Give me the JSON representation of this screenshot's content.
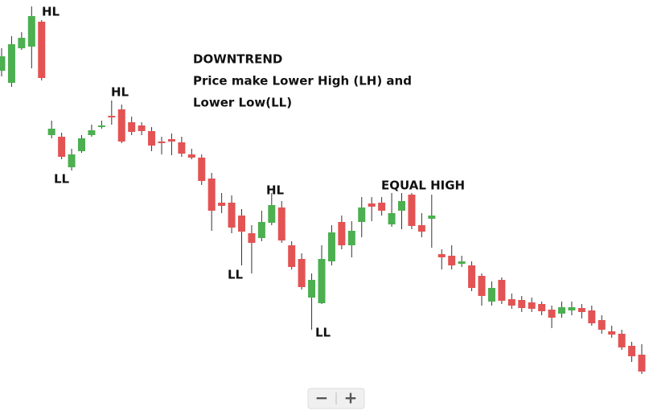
{
  "chart_data": {
    "type": "candlestick",
    "annotations": [
      "HL",
      "DOWNTREND",
      "Price make Lower High (LH) and",
      "Lower Low(LL)",
      "HL",
      "LL",
      "HL",
      "LL",
      "LL",
      "EQUAL HIGH"
    ],
    "open": [
      433,
      418,
      461,
      463,
      494,
      353,
      351,
      313,
      333,
      353,
      363,
      377,
      385,
      369,
      365,
      358,
      345,
      348,
      344,
      329,
      325,
      299,
      269,
      269,
      253,
      231,
      225,
      244,
      263,
      216,
      199,
      151,
      144,
      196,
      245,
      216,
      245,
      268,
      269,
      242,
      259,
      279,
      241,
      249,
      205,
      203,
      193,
      191,
      178,
      146,
      173,
      149,
      148,
      145,
      143,
      136,
      131,
      135,
      138,
      135,
      123,
      109,
      106,
      91,
      80
    ],
    "high": [
      461,
      476,
      481,
      513,
      496,
      371,
      356,
      336,
      353,
      366,
      371,
      396,
      391,
      376,
      369,
      363,
      351,
      355,
      351,
      336,
      329,
      306,
      281,
      278,
      261,
      241,
      259,
      281,
      271,
      221,
      206,
      181,
      216,
      241,
      253,
      246,
      276,
      276,
      276,
      281,
      281,
      281,
      256,
      279,
      211,
      216,
      203,
      196,
      181,
      171,
      176,
      156,
      153,
      151,
      146,
      141,
      146,
      146,
      143,
      141,
      129,
      116,
      111,
      96,
      93
    ],
    "low": [
      426,
      413,
      459,
      436,
      421,
      349,
      323,
      309,
      331,
      351,
      361,
      366,
      343,
      353,
      353,
      333,
      329,
      328,
      326,
      323,
      291,
      234,
      256,
      231,
      191,
      181,
      221,
      241,
      219,
      186,
      161,
      111,
      143,
      191,
      211,
      201,
      226,
      246,
      253,
      239,
      236,
      236,
      226,
      213,
      186,
      186,
      189,
      159,
      141,
      141,
      143,
      137,
      133,
      133,
      129,
      113,
      126,
      129,
      125,
      116,
      106,
      101,
      86,
      71,
      56
    ],
    "close": [
      451,
      466,
      474,
      501,
      424,
      361,
      326,
      329,
      349,
      359,
      365,
      375,
      345,
      357,
      358,
      340,
      343,
      345,
      330,
      325,
      296,
      259,
      265,
      238,
      233,
      219,
      245,
      266,
      222,
      189,
      164,
      173,
      199,
      232,
      216,
      234,
      263,
      264,
      259,
      256,
      271,
      240,
      233,
      253,
      201,
      191,
      196,
      163,
      153,
      163,
      147,
      141,
      138,
      137,
      134,
      126,
      139,
      139,
      133,
      119,
      111,
      105,
      89,
      78,
      59
    ],
    "up_color": "#4caf50",
    "down_color": "#e35353",
    "ylim": [
      0,
      521
    ]
  },
  "zoom_controls": [
    "−",
    "+"
  ]
}
